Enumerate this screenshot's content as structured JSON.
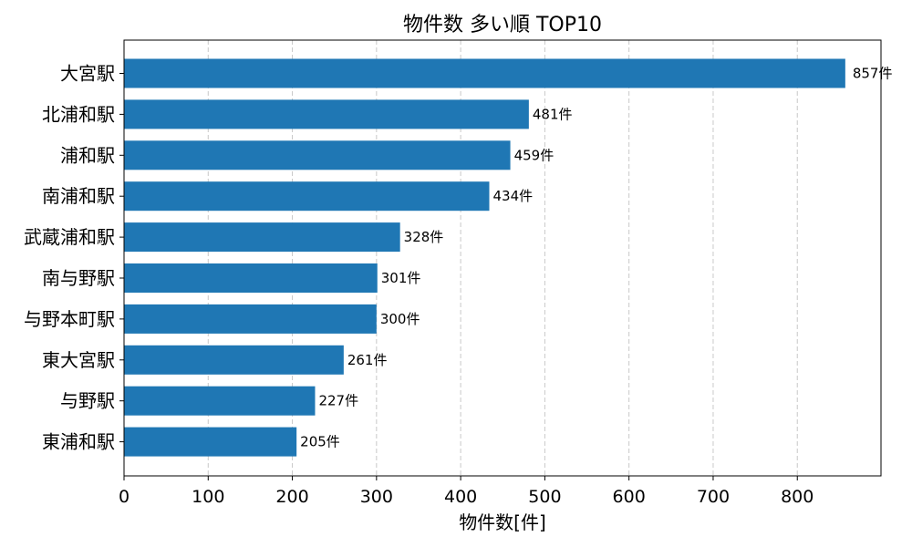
{
  "chart_data": {
    "type": "bar",
    "orientation": "horizontal",
    "title": "物件数 多い順 TOP10",
    "xlabel": "物件数[件]",
    "ylabel": "",
    "categories": [
      "大宮駅",
      "北浦和駅",
      "浦和駅",
      "南浦和駅",
      "武蔵浦和駅",
      "南与野駅",
      "与野本町駅",
      "東大宮駅",
      "与野駅",
      "東浦和駅"
    ],
    "values": [
      857,
      481,
      459,
      434,
      328,
      301,
      300,
      261,
      227,
      205
    ],
    "value_labels": [
      "857件",
      "481件",
      "459件",
      "434件",
      "328件",
      "301件",
      "300件",
      "261件",
      "227件",
      "205件"
    ],
    "xticks": [
      "0",
      "100",
      "200",
      "300",
      "400",
      "500",
      "600",
      "700",
      "800"
    ],
    "xlim": [
      0,
      900
    ],
    "grid": "x-dashed",
    "bar_color": "#1f77b4",
    "grid_color": "#c8c8c8"
  }
}
